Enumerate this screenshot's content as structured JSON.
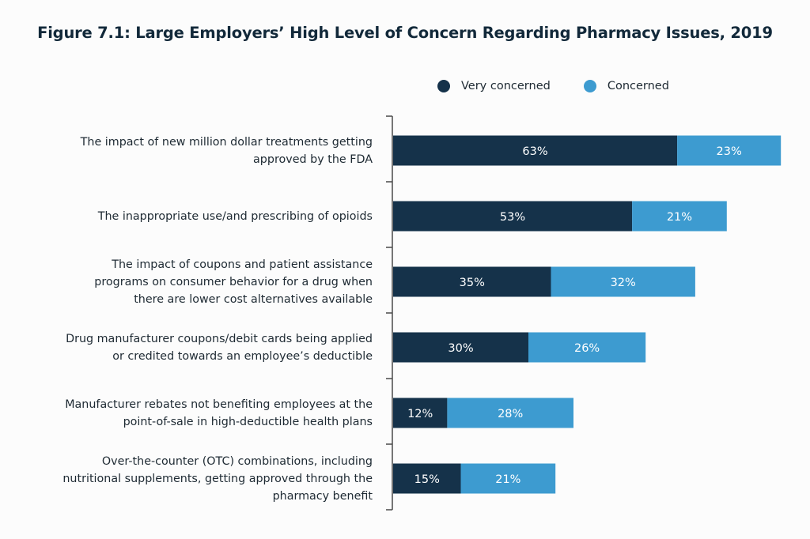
{
  "chart_data": {
    "type": "bar",
    "orientation": "horizontal",
    "stacked": true,
    "title": "Figure 7.1: Large Employers’ High Level of Concern Regarding Pharmacy Issues, 2019",
    "xlabel": "",
    "ylabel": "",
    "xlim": [
      0,
      100
    ],
    "grid": false,
    "legend_position": "top-right",
    "categories": [
      [
        "The impact of new million dollar treatments getting",
        "approved by the FDA"
      ],
      [
        "The inappropriate use/and prescribing of opioids"
      ],
      [
        "The impact of coupons and patient assistance",
        "programs on consumer behavior for a drug when",
        "there are lower cost alternatives available"
      ],
      [
        "Drug manufacturer coupons/debit cards being applied",
        "or credited towards an employee’s deductible"
      ],
      [
        "Manufacturer rebates not benefiting employees at the",
        "point-of-sale in high-deductible health plans"
      ],
      [
        "Over-the-counter (OTC) combinations, including",
        "nutritional supplements, getting approved through the",
        "pharmacy benefit"
      ]
    ],
    "series": [
      {
        "name": "Very concerned",
        "color": "#15324a",
        "values": [
          63,
          53,
          35,
          30,
          12,
          15
        ],
        "labels": [
          "63%",
          "53%",
          "35%",
          "30%",
          "12%",
          "15%"
        ]
      },
      {
        "name": "Concerned",
        "color": "#3d9bd0",
        "values": [
          23,
          21,
          32,
          26,
          28,
          21
        ],
        "labels": [
          "23%",
          "21%",
          "32%",
          "26%",
          "28%",
          "21%"
        ]
      }
    ]
  },
  "colors": {
    "title": "#12293a",
    "axis": "#4a4a4a",
    "label_text": "#1e2a33",
    "bar_text": "#ffffff"
  }
}
